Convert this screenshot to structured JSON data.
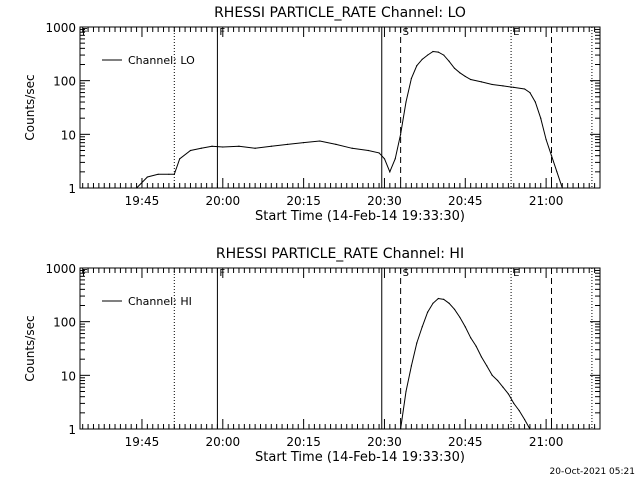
{
  "chart_data": [
    {
      "type": "line",
      "title": "RHESSI PARTICLE_RATE Channel: LO",
      "xlabel": "Start Time (14-Feb-14 19:33:30)",
      "ylabel": "Counts/sec",
      "y_scale": "log",
      "ylim": [
        1,
        1000
      ],
      "xlim": [
        "19:33:30",
        "21:10:00"
      ],
      "x_ticks": [
        "19:45",
        "20:00",
        "20:15",
        "20:30",
        "20:45",
        "21:00"
      ],
      "y_ticks": [
        "1",
        "10",
        "100",
        "1000"
      ],
      "legend": {
        "label": "Channel: LO",
        "position": "top-left"
      },
      "markers": [
        {
          "label": "F",
          "time": "19:33:30",
          "style": "dotted"
        },
        {
          "label": "",
          "time": "19:51:00",
          "style": "dotted"
        },
        {
          "label": "F",
          "time": "19:59:00",
          "style": "solid"
        },
        {
          "label": "",
          "time": "20:29:30",
          "style": "solid"
        },
        {
          "label": "S",
          "time": "20:33:00",
          "style": "dashed"
        },
        {
          "label": "E",
          "time": "20:53:30",
          "style": "dotted"
        },
        {
          "label": "",
          "time": "21:01:00",
          "style": "dashed"
        },
        {
          "label": "",
          "time": "21:08:30",
          "style": "dotted"
        }
      ],
      "series": [
        {
          "name": "Channel: LO",
          "x": [
            "19:33:30",
            "19:36:00",
            "19:39:00",
            "19:42:00",
            "19:44:00",
            "19:46:00",
            "19:48:00",
            "19:50:00",
            "19:51:00",
            "19:52:00",
            "19:54:00",
            "19:56:00",
            "19:58:00",
            "20:00:00",
            "20:03:00",
            "20:06:00",
            "20:09:00",
            "20:12:00",
            "20:15:00",
            "20:18:00",
            "20:21:00",
            "20:24:00",
            "20:27:00",
            "20:29:00",
            "20:30:00",
            "20:31:00",
            "20:32:00",
            "20:33:00",
            "20:34:00",
            "20:35:00",
            "20:36:00",
            "20:37:00",
            "20:38:00",
            "20:39:00",
            "20:40:00",
            "20:41:00",
            "20:42:00",
            "20:43:00",
            "20:44:00",
            "20:45:00",
            "20:46:00",
            "20:48:00",
            "20:50:00",
            "20:52:00",
            "20:54:00",
            "20:56:00",
            "20:57:00",
            "20:58:00",
            "20:59:00",
            "21:00:00",
            "21:01:00",
            "21:02:00",
            "21:03:00",
            "21:05:00",
            "21:07:00",
            "21:08:00"
          ],
          "y": [
            1,
            1,
            1,
            1,
            1,
            1.6,
            1.8,
            1.8,
            1.8,
            3.5,
            5,
            5.5,
            6,
            5.8,
            6,
            5.5,
            6,
            6.5,
            7,
            7.5,
            6.5,
            5.5,
            5,
            4.5,
            3.5,
            2,
            3.5,
            10,
            40,
            110,
            190,
            250,
            300,
            350,
            340,
            300,
            230,
            170,
            140,
            120,
            105,
            95,
            85,
            80,
            75,
            70,
            60,
            40,
            20,
            8,
            4,
            2,
            1,
            1,
            1,
            1
          ]
        }
      ]
    },
    {
      "type": "line",
      "title": "RHESSI PARTICLE_RATE Channel: HI",
      "xlabel": "Start Time (14-Feb-14 19:33:30)",
      "ylabel": "Counts/sec",
      "y_scale": "log",
      "ylim": [
        1,
        1000
      ],
      "xlim": [
        "19:33:30",
        "21:10:00"
      ],
      "x_ticks": [
        "19:45",
        "20:00",
        "20:15",
        "20:30",
        "20:45",
        "21:00"
      ],
      "y_ticks": [
        "1",
        "10",
        "100",
        "1000"
      ],
      "legend": {
        "label": "Channel: HI",
        "position": "top-left"
      },
      "markers": [
        {
          "label": "F",
          "time": "19:33:30",
          "style": "dotted"
        },
        {
          "label": "",
          "time": "19:51:00",
          "style": "dotted"
        },
        {
          "label": "F",
          "time": "19:59:00",
          "style": "solid"
        },
        {
          "label": "",
          "time": "20:29:30",
          "style": "solid"
        },
        {
          "label": "S",
          "time": "20:33:00",
          "style": "dashed"
        },
        {
          "label": "E",
          "time": "20:53:30",
          "style": "dotted"
        },
        {
          "label": "",
          "time": "21:01:00",
          "style": "dashed"
        },
        {
          "label": "",
          "time": "21:08:30",
          "style": "dotted"
        }
      ],
      "series": [
        {
          "name": "Channel: HI",
          "x": [
            "20:33:00",
            "20:34:00",
            "20:35:00",
            "20:36:00",
            "20:37:00",
            "20:38:00",
            "20:39:00",
            "20:40:00",
            "20:41:00",
            "20:42:00",
            "20:43:00",
            "20:44:00",
            "20:45:00",
            "20:46:00",
            "20:47:00",
            "20:48:00",
            "20:49:00",
            "20:50:00",
            "20:51:00",
            "20:52:00",
            "20:53:00",
            "20:54:00",
            "20:55:00",
            "20:56:00",
            "20:57:00"
          ],
          "y": [
            1,
            5,
            15,
            40,
            80,
            150,
            220,
            270,
            260,
            220,
            170,
            120,
            80,
            50,
            35,
            22,
            15,
            10,
            8,
            6,
            4.5,
            3,
            2.2,
            1.5,
            1
          ]
        }
      ]
    }
  ],
  "footer_timestamp": "20-Oct-2021 05:21"
}
